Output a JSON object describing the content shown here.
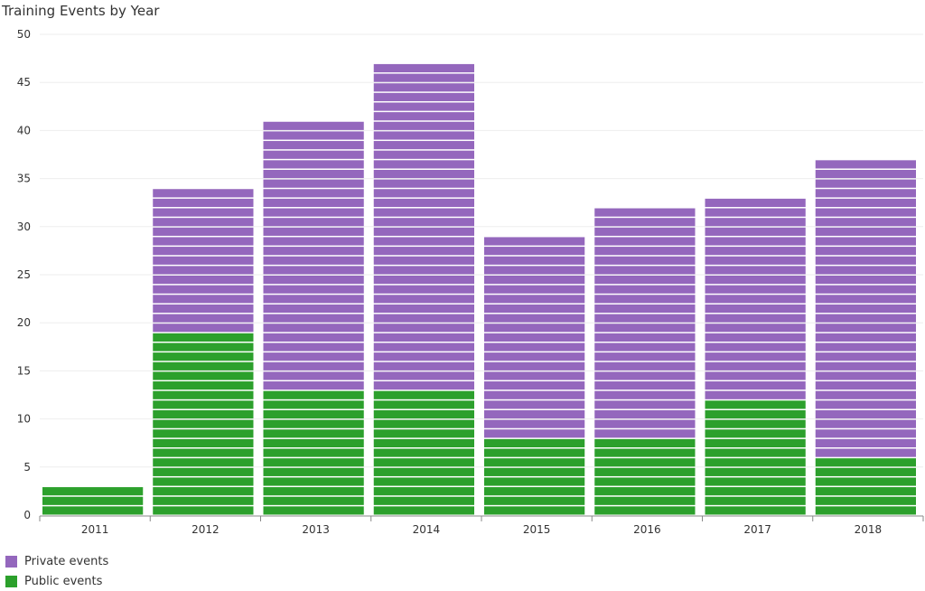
{
  "chart_data": {
    "type": "bar",
    "stacked": true,
    "title": "Training Events by Year",
    "xlabel": "",
    "ylabel": "",
    "categories": [
      "2011",
      "2012",
      "2013",
      "2014",
      "2015",
      "2016",
      "2017",
      "2018"
    ],
    "series": [
      {
        "name": "Public events",
        "color": "#2ca02c",
        "values": [
          3,
          19,
          13,
          13,
          8,
          8,
          12,
          6
        ]
      },
      {
        "name": "Private events",
        "color": "#9467bd",
        "values": [
          0,
          15,
          28,
          34,
          21,
          24,
          21,
          31
        ]
      }
    ],
    "ylim": [
      0,
      50
    ],
    "yticks": [
      0,
      5,
      10,
      15,
      20,
      25,
      30,
      35,
      40,
      45,
      50
    ],
    "grid": true,
    "legend": "bottom-left"
  }
}
